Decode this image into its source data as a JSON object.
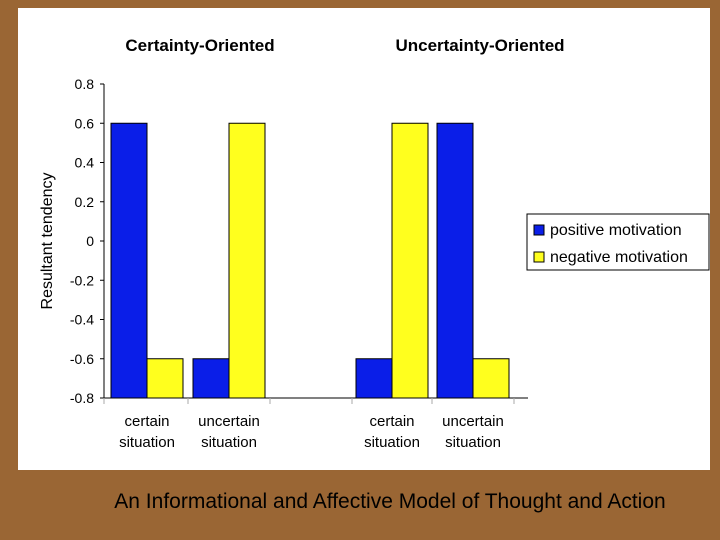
{
  "chart_data": {
    "type": "bar",
    "ylabel": "Resultant tendency",
    "ylim": [
      -0.8,
      0.8
    ],
    "yticks": [
      "0.8",
      "0.6",
      "0.4",
      "0.2",
      "0",
      "-0.2",
      "-0.4",
      "-0.6",
      "-0.8"
    ],
    "grid": false,
    "legend_position": "right",
    "groups": [
      {
        "title": "Certainty-Oriented",
        "categories": [
          [
            "certain",
            "situation"
          ],
          [
            "uncertain",
            "situation"
          ]
        ]
      },
      {
        "title": "Uncertainty-Oriented",
        "categories": [
          [
            "certain",
            "situation"
          ],
          [
            "uncertain",
            "situation"
          ]
        ]
      }
    ],
    "series": [
      {
        "name": "positive motivation",
        "color": "#0a1ee8",
        "values": [
          0.6,
          -0.6,
          -0.6,
          0.6
        ]
      },
      {
        "name": "negative motivation",
        "color": "#ffff1e",
        "values": [
          -0.6,
          0.6,
          0.6,
          -0.6
        ]
      }
    ]
  },
  "caption": "An Informational and Affective Model of Thought and Action"
}
